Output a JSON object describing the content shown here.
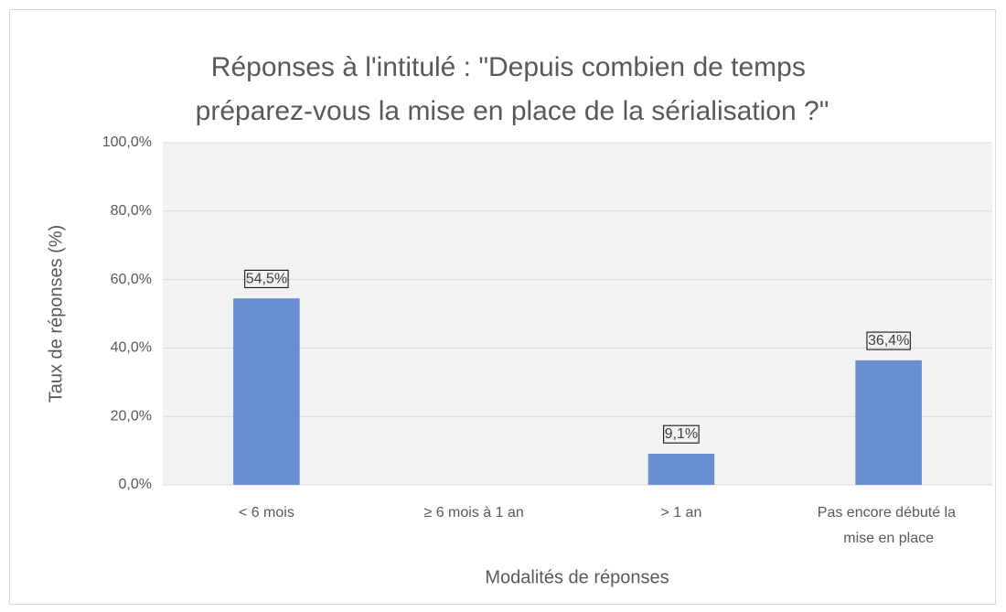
{
  "chart_data": {
    "type": "bar",
    "title": "Réponses à l'intitulé : \"Depuis combien de temps préparez-vous la mise en place de la sérialisation ?\"",
    "x_label": "Modalités de réponses",
    "y_label": "Taux de réponses (%)",
    "categories": [
      "< 6 mois",
      "≥ 6 mois à 1 an",
      "> 1 an",
      "Pas encore débuté la mise en place"
    ],
    "values": [
      54.5,
      0,
      9.1,
      36.4
    ],
    "value_labels": [
      "54,5%",
      null,
      "9,1%",
      "36,4%"
    ],
    "color": "#6a8fd0",
    "ylim": [
      0,
      100
    ],
    "yticks": [
      {
        "value": 0,
        "label": "0,0%"
      },
      {
        "value": 20,
        "label": "20,0%"
      },
      {
        "value": 40,
        "label": "40,0%"
      },
      {
        "value": 60,
        "label": "60,0%"
      },
      {
        "value": 80,
        "label": "80,0%"
      },
      {
        "value": 100,
        "label": "100,0%"
      }
    ],
    "grid": true
  }
}
